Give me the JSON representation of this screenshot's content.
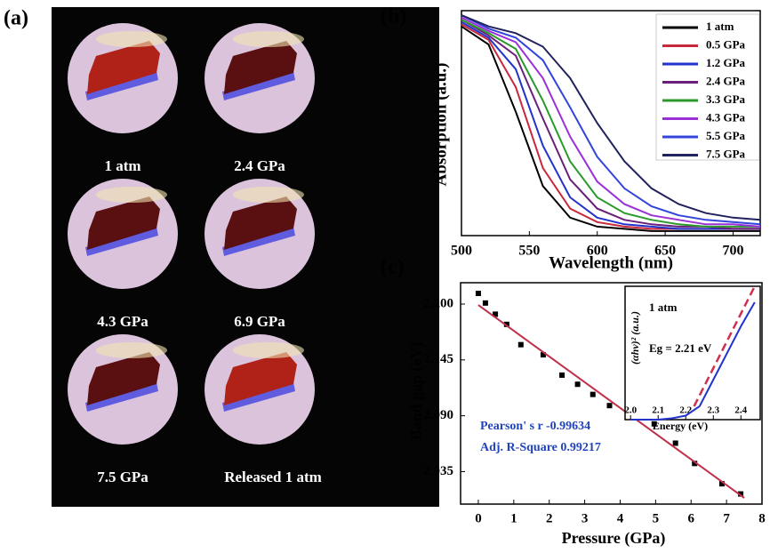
{
  "photos": {
    "panel_label": "(a)",
    "captions": [
      "1 atm",
      "2.4 GPa",
      "4.3 GPa",
      "6.9 GPa",
      "7.5 GPa",
      "Released 1 atm"
    ]
  },
  "chart_data": [
    {
      "type": "line",
      "panel_label": "(b)",
      "x_label": "Wavelength (nm)",
      "y_label": "Absorption (a.u.)",
      "x": [
        500,
        520,
        540,
        560,
        580,
        600,
        620,
        640,
        660,
        680,
        700,
        720
      ],
      "xlim": [
        500,
        720
      ],
      "xticks": [
        500,
        550,
        600,
        650,
        700
      ],
      "ylim": [
        0,
        1
      ],
      "legend": "top-right",
      "series": [
        {
          "name": "1 atm",
          "color": "#000000",
          "values": [
            0.93,
            0.85,
            0.55,
            0.22,
            0.08,
            0.04,
            0.03,
            0.02,
            0.02,
            0.02,
            0.02,
            0.02
          ]
        },
        {
          "name": "0.5 GPa",
          "color": "#c8283c",
          "values": [
            0.94,
            0.87,
            0.66,
            0.3,
            0.12,
            0.06,
            0.04,
            0.03,
            0.03,
            0.03,
            0.03,
            0.03
          ]
        },
        {
          "name": "1.2 GPa",
          "color": "#2233cc",
          "values": [
            0.95,
            0.88,
            0.74,
            0.4,
            0.17,
            0.08,
            0.05,
            0.04,
            0.03,
            0.03,
            0.03,
            0.03
          ]
        },
        {
          "name": "2.4 GPa",
          "color": "#6a1f7a",
          "values": [
            0.96,
            0.89,
            0.8,
            0.52,
            0.25,
            0.12,
            0.07,
            0.05,
            0.04,
            0.04,
            0.03,
            0.03
          ]
        },
        {
          "name": "3.3 GPa",
          "color": "#2a9a2a",
          "values": [
            0.96,
            0.9,
            0.83,
            0.6,
            0.33,
            0.17,
            0.1,
            0.07,
            0.05,
            0.04,
            0.04,
            0.04
          ]
        },
        {
          "name": "4.3 GPa",
          "color": "#9b30d9",
          "values": [
            0.97,
            0.91,
            0.86,
            0.7,
            0.44,
            0.24,
            0.14,
            0.09,
            0.07,
            0.05,
            0.05,
            0.04
          ]
        },
        {
          "name": "5.5 GPa",
          "color": "#3344dd",
          "values": [
            0.98,
            0.92,
            0.88,
            0.78,
            0.57,
            0.35,
            0.21,
            0.13,
            0.09,
            0.07,
            0.06,
            0.05
          ]
        },
        {
          "name": "7.5 GPa",
          "color": "#22225e",
          "values": [
            0.98,
            0.93,
            0.9,
            0.84,
            0.7,
            0.5,
            0.33,
            0.21,
            0.14,
            0.1,
            0.08,
            0.07
          ]
        }
      ]
    },
    {
      "type": "scatter",
      "panel_label": "(c)",
      "x_label": "Pressure (GPa)",
      "y_label": "Band gap (eV)",
      "xlim": [
        -0.5,
        8
      ],
      "xticks": [
        0,
        1,
        2,
        3,
        4,
        5,
        6,
        7,
        8
      ],
      "ylim": [
        2.003,
        2.221
      ],
      "yticks": [
        {
          "value": 2.2,
          "label": "2.200"
        },
        2.145,
        {
          "value": 2.09,
          "label": "2.090"
        },
        2.035
      ],
      "annotations": [
        "Pearson' s r   -0.99634",
        "Adj. R-Square 0.99217"
      ],
      "series": [
        {
          "style": "points",
          "color": "#000000",
          "x": [
            0,
            0.2,
            0.48,
            0.8,
            1.2,
            1.83,
            2.36,
            2.8,
            3.23,
            3.7,
            4.3,
            4.96,
            5.56,
            6.1,
            6.87,
            7.4
          ],
          "values": [
            2.2105,
            2.201,
            2.19,
            2.18,
            2.16,
            2.15,
            2.13,
            2.121,
            2.111,
            2.1,
            2.092,
            2.082,
            2.063,
            2.043,
            2.023,
            2.013
          ]
        },
        {
          "style": "line",
          "color": "#c0304a",
          "x": [
            0,
            7.5
          ],
          "values": [
            2.199,
            2.009
          ]
        }
      ]
    },
    {
      "type": "line",
      "x_label": "Energy (eV)",
      "y_label": "(αhν)² (a.u.)",
      "xlim": [
        1.98,
        2.47
      ],
      "xticks": [
        {
          "value": 2.0,
          "label": "2.0"
        },
        2.1,
        2.2,
        2.3,
        2.4
      ],
      "ylim": [
        0,
        1
      ],
      "annotations": [
        "1 atm",
        "Eg = 2.21 eV"
      ],
      "series": [
        {
          "color": "#2233cc",
          "x": [
            2.0,
            2.05,
            2.1,
            2.15,
            2.2,
            2.25,
            2.3,
            2.35,
            2.4,
            2.45
          ],
          "values": [
            0,
            0,
            0,
            0.01,
            0.03,
            0.1,
            0.3,
            0.5,
            0.7,
            0.88
          ]
        },
        {
          "color": "#d03050",
          "dashed": true,
          "x": [
            2.23,
            2.45
          ],
          "values": [
            0.1,
            1.0
          ]
        }
      ]
    }
  ]
}
